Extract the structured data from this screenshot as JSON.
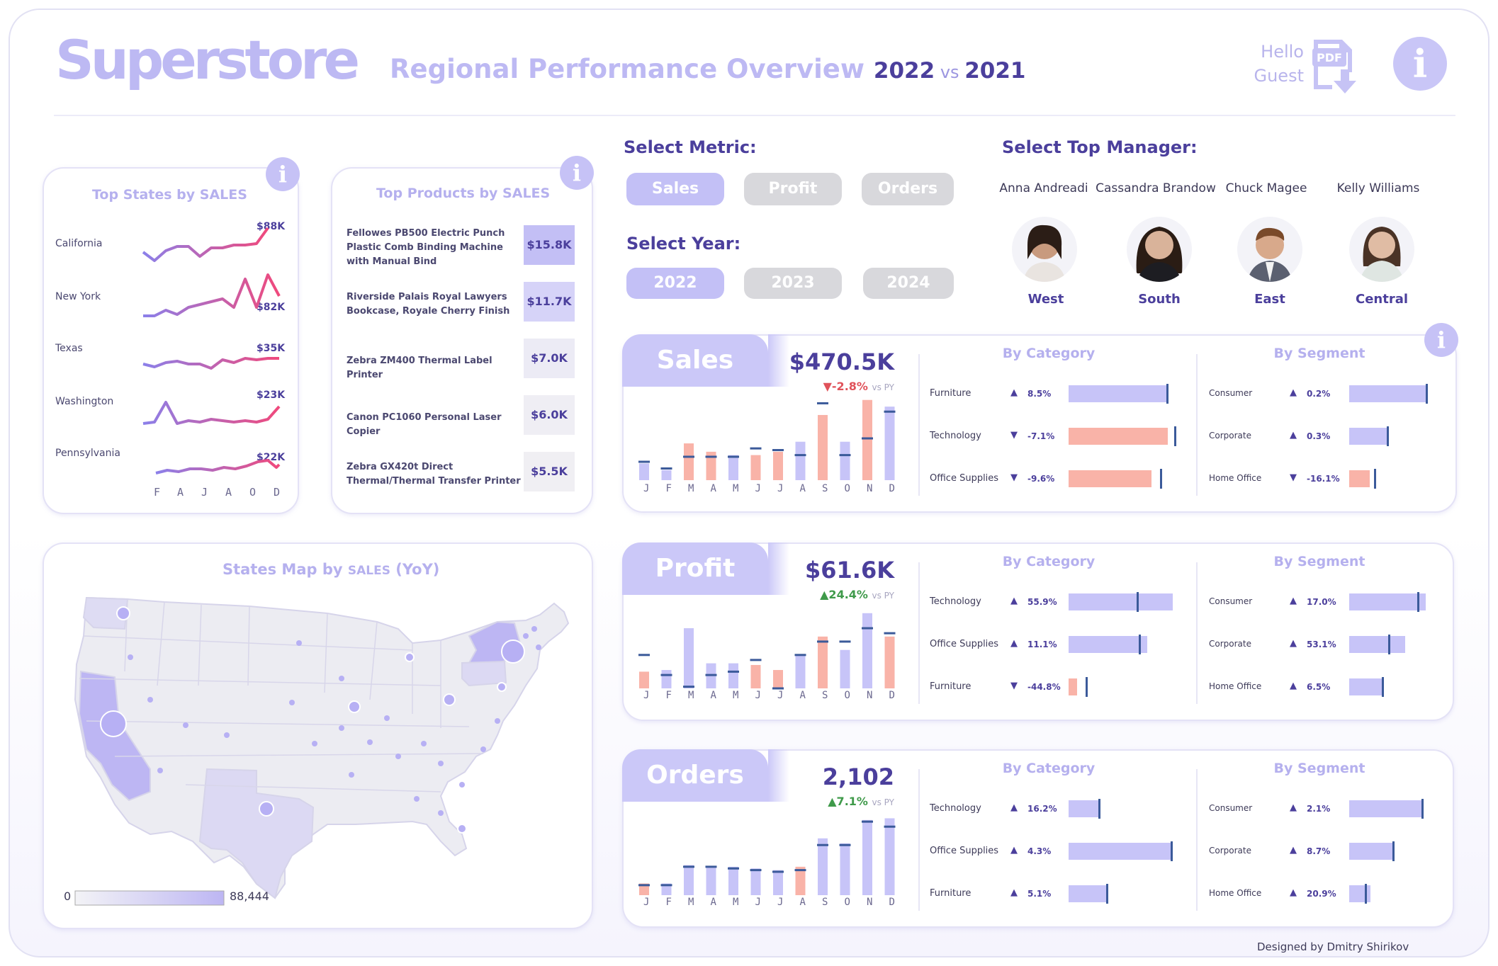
{
  "header": {
    "logo": "Superstore",
    "title": "Regional Performance Overview",
    "year_current": "2022",
    "vs": "vs",
    "year_previous": "2021",
    "greeting_line1": "Hello",
    "greeting_line2": "Guest",
    "pdf_label": "PDF",
    "info_icon": "i"
  },
  "top_states": {
    "title": "Top States by SALES",
    "months": [
      "F",
      "A",
      "J",
      "A",
      "O",
      "D"
    ],
    "states": [
      {
        "name": "California",
        "value": "$88K"
      },
      {
        "name": "New York",
        "value": "$82K"
      },
      {
        "name": "Texas",
        "value": "$35K"
      },
      {
        "name": "Washington",
        "value": "$23K"
      },
      {
        "name": "Pennsylvania",
        "value": "$22K"
      }
    ]
  },
  "top_products": {
    "title": "Top Products by SALES",
    "items": [
      {
        "name": "Fellowes PB500 Electric Punch Plastic Comb Binding Machine with Manual Bind",
        "value": "$15.8K"
      },
      {
        "name": "Riverside Palais Royal Lawyers Bookcase, Royale Cherry Finish",
        "value": "$11.7K"
      },
      {
        "name": "Zebra ZM400 Thermal Label Printer",
        "value": "$7.0K"
      },
      {
        "name": "Canon PC1060 Personal Laser Copier",
        "value": "$6.0K"
      },
      {
        "name": "Zebra GX420t Direct Thermal/Thermal Transfer Printer",
        "value": "$5.5K"
      }
    ]
  },
  "map": {
    "title_part1": "States Map by",
    "title_metric": "SALES",
    "title_part2": "(YoY)",
    "legend_min": "0",
    "legend_max": "88,444"
  },
  "select_metric": {
    "label": "Select Metric:",
    "options": [
      "Sales",
      "Profit",
      "Orders"
    ],
    "selected": "Sales"
  },
  "select_year": {
    "label": "Select Year:",
    "options": [
      "2022",
      "2023",
      "2024"
    ],
    "selected": "2022"
  },
  "select_manager": {
    "label": "Select Top Manager:",
    "managers": [
      {
        "name": "Anna Andreadi",
        "region": "West"
      },
      {
        "name": "Cassandra Brandow",
        "region": "South"
      },
      {
        "name": "Chuck Magee",
        "region": "East"
      },
      {
        "name": "Kelly Williams",
        "region": "Central"
      }
    ]
  },
  "month_letters": [
    "J",
    "F",
    "M",
    "A",
    "M",
    "J",
    "J",
    "A",
    "S",
    "O",
    "N",
    "D"
  ],
  "kpis": [
    {
      "name": "Sales",
      "value": "$470.5K",
      "delta": "▼-2.8%",
      "delta_color": "#e0525a",
      "vs": "vs PY",
      "category_title": "By Category",
      "segment_title": "By Segment",
      "categories": [
        {
          "label": "Furniture",
          "arrow": "▲",
          "pct": "8.5%",
          "value": 0.93,
          "marker": 0.92,
          "positive": true
        },
        {
          "label": "Technology",
          "arrow": "▼",
          "pct": "-7.1%",
          "value": 0.93,
          "marker": 0.99,
          "positive": false
        },
        {
          "label": "Office Supplies",
          "arrow": "▼",
          "pct": "-9.6%",
          "value": 0.78,
          "marker": 0.86,
          "positive": false
        }
      ],
      "segments": [
        {
          "label": "Consumer",
          "arrow": "▲",
          "pct": "0.2%",
          "value": 0.98,
          "marker": 0.98,
          "positive": true
        },
        {
          "label": "Corporate",
          "arrow": "▲",
          "pct": "0.3%",
          "value": 0.48,
          "marker": 0.48,
          "positive": true
        },
        {
          "label": "Home Office",
          "arrow": "▼",
          "pct": "-16.1%",
          "value": 0.26,
          "marker": 0.32,
          "positive": false
        }
      ],
      "monthly": [
        {
          "cur": 0.2,
          "prev": 0.22,
          "up": true
        },
        {
          "cur": 0.12,
          "prev": 0.14,
          "up": true
        },
        {
          "cur": 0.44,
          "prev": 0.28,
          "up": false
        },
        {
          "cur": 0.34,
          "prev": 0.28,
          "up": false
        },
        {
          "cur": 0.3,
          "prev": 0.28,
          "up": true
        },
        {
          "cur": 0.3,
          "prev": 0.38,
          "up": false
        },
        {
          "cur": 0.34,
          "prev": 0.36,
          "up": false
        },
        {
          "cur": 0.46,
          "prev": 0.3,
          "up": true
        },
        {
          "cur": 0.78,
          "prev": 0.92,
          "up": false
        },
        {
          "cur": 0.46,
          "prev": 0.3,
          "up": true
        },
        {
          "cur": 0.96,
          "prev": 0.5,
          "up": false
        },
        {
          "cur": 0.88,
          "prev": 0.82,
          "up": true
        }
      ]
    },
    {
      "name": "Profit",
      "value": "$61.6K",
      "delta": "▲24.4%",
      "delta_color": "#3f9a4a",
      "vs": "vs PY",
      "category_title": "By Category",
      "segment_title": "By Segment",
      "categories": [
        {
          "label": "Technology",
          "arrow": "▲",
          "pct": "55.9%",
          "value": 0.98,
          "marker": 0.64,
          "positive": true
        },
        {
          "label": "Office Supplies",
          "arrow": "▲",
          "pct": "11.1%",
          "value": 0.74,
          "marker": 0.66,
          "positive": true
        },
        {
          "label": "Furniture",
          "arrow": "▼",
          "pct": "-44.8%",
          "value": 0.08,
          "marker": 0.16,
          "positive": false
        }
      ],
      "segments": [
        {
          "label": "Consumer",
          "arrow": "▲",
          "pct": "17.0%",
          "value": 0.98,
          "marker": 0.87,
          "positive": true
        },
        {
          "label": "Corporate",
          "arrow": "▲",
          "pct": "53.1%",
          "value": 0.72,
          "marker": 0.5,
          "positive": true
        },
        {
          "label": "Home Office",
          "arrow": "▲",
          "pct": "6.5%",
          "value": 0.42,
          "marker": 0.42,
          "positive": true
        }
      ],
      "monthly": [
        {
          "cur": 0.2,
          "prev": 0.4,
          "up": false
        },
        {
          "cur": 0.22,
          "prev": 0.16,
          "up": true
        },
        {
          "cur": 0.72,
          "prev": 0.02,
          "up": true
        },
        {
          "cur": 0.3,
          "prev": 0.16,
          "up": true
        },
        {
          "cur": 0.3,
          "prev": 0.2,
          "up": true
        },
        {
          "cur": 0.28,
          "prev": 0.34,
          "up": false
        },
        {
          "cur": 0.22,
          "prev": 0.0,
          "up": false
        },
        {
          "cur": 0.4,
          "prev": 0.4,
          "up": true
        },
        {
          "cur": 0.62,
          "prev": 0.56,
          "up": false
        },
        {
          "cur": 0.46,
          "prev": 0.56,
          "up": true
        },
        {
          "cur": 0.9,
          "prev": 0.72,
          "up": true
        },
        {
          "cur": 0.62,
          "prev": 0.66,
          "up": false
        }
      ]
    },
    {
      "name": "Orders",
      "value": "2,102",
      "delta": "▲7.1%",
      "delta_color": "#3f9a4a",
      "vs": "vs PY",
      "category_title": "By Category",
      "segment_title": "By Segment",
      "categories": [
        {
          "label": "Technology",
          "arrow": "▲",
          "pct": "16.2%",
          "value": 0.3,
          "marker": 0.28,
          "positive": true
        },
        {
          "label": "Office Supplies",
          "arrow": "▲",
          "pct": "4.3%",
          "value": 0.98,
          "marker": 0.96,
          "positive": true
        },
        {
          "label": "Furniture",
          "arrow": "▲",
          "pct": "5.1%",
          "value": 0.35,
          "marker": 0.35,
          "positive": true
        }
      ],
      "segments": [
        {
          "label": "Consumer",
          "arrow": "▲",
          "pct": "2.1%",
          "value": 0.93,
          "marker": 0.93,
          "positive": true
        },
        {
          "label": "Corporate",
          "arrow": "▲",
          "pct": "8.7%",
          "value": 0.55,
          "marker": 0.55,
          "positive": true
        },
        {
          "label": "Home Office",
          "arrow": "▲",
          "pct": "20.9%",
          "value": 0.27,
          "marker": 0.2,
          "positive": true
        }
      ],
      "monthly": [
        {
          "cur": 0.14,
          "prev": 0.12,
          "up": false
        },
        {
          "cur": 0.14,
          "prev": 0.12,
          "up": true
        },
        {
          "cur": 0.36,
          "prev": 0.34,
          "up": true
        },
        {
          "cur": 0.34,
          "prev": 0.34,
          "up": true
        },
        {
          "cur": 0.34,
          "prev": 0.32,
          "up": true
        },
        {
          "cur": 0.32,
          "prev": 0.3,
          "up": true
        },
        {
          "cur": 0.3,
          "prev": 0.28,
          "up": true
        },
        {
          "cur": 0.34,
          "prev": 0.3,
          "up": false
        },
        {
          "cur": 0.68,
          "prev": 0.6,
          "up": true
        },
        {
          "cur": 0.62,
          "prev": 0.6,
          "up": true
        },
        {
          "cur": 0.9,
          "prev": 0.88,
          "up": true
        },
        {
          "cur": 0.92,
          "prev": 0.82,
          "up": true
        }
      ]
    }
  ],
  "credit": "Designed by Dmitry Shirikov"
}
